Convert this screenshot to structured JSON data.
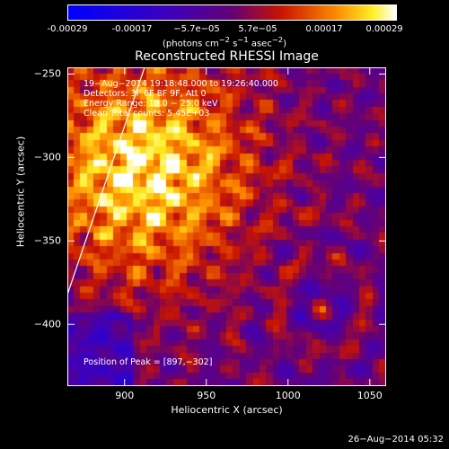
{
  "colorbar": {
    "ticks": [
      "-0.00029",
      "-0.00017",
      "−5.7e−05",
      "5.7e−05",
      "0.00017",
      "0.00029"
    ],
    "units_prefix": "(photons cm",
    "units_sup1": "−2",
    "units_mid": " s",
    "units_sup2": "−1",
    "units_mid2": " asec",
    "units_sup3": "−2",
    "units_suffix": ")"
  },
  "annotations": {
    "time_range": "19−Aug−2014 19:18:48.000 to 19:26:40.000",
    "detectors": "Detectors: 3F 6F 8F 9F, Att 0",
    "energy": "Energy Range: 12.0 − 25.0 keV",
    "algorithm": "Clean    Total counts: 5.45E+03",
    "peak": "Position of Peak = [897,−302]"
  },
  "timestamp": "26−Aug−2014 05:32",
  "colors": {
    "low": "#0000ff",
    "neutral": "#4a0a9a",
    "mid": "#cc1a00",
    "high": "#ffff00",
    "max": "#ffffff",
    "limb": "#ffffff"
  },
  "chart_data": {
    "type": "heatmap",
    "title": "Reconstructed RHESSI Image",
    "xlabel": "Heliocentric X (arcsec)",
    "ylabel": "Heliocentric Y (arcsec)",
    "xlim": [
      865,
      1060
    ],
    "ylim": [
      -437,
      -246
    ],
    "xticks": [
      900,
      950,
      1000,
      1050
    ],
    "yticks": [
      -250,
      -300,
      -350,
      -400
    ],
    "colorbar_range": [
      -0.00029,
      0.00029
    ],
    "peak_position": [
      897,
      -302
    ],
    "grid": false
  }
}
